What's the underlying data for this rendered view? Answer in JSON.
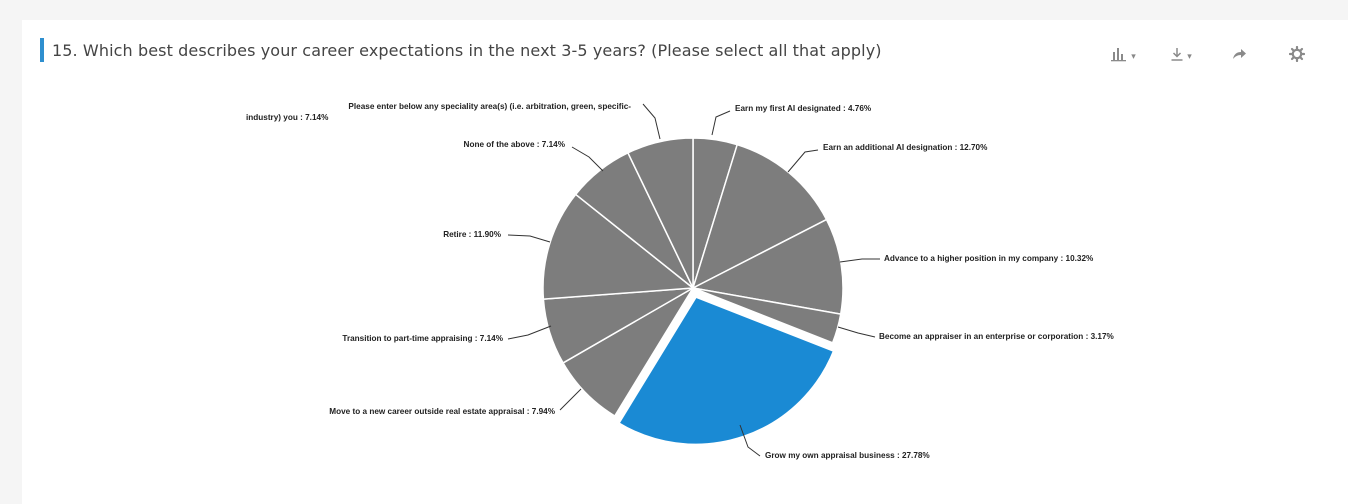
{
  "question": {
    "title": "15. Which best describes your career expectations in the next 3-5 years? (Please select all that apply)"
  },
  "toolbar": {
    "items": [
      {
        "icon": "bar-chart-icon",
        "has_menu": true
      },
      {
        "icon": "download-icon",
        "has_menu": true
      },
      {
        "icon": "share-icon",
        "has_menu": false
      },
      {
        "icon": "gear-icon",
        "has_menu": false
      }
    ]
  },
  "colors": {
    "accent": "#2e8fcf",
    "slice": "#7d7d7d",
    "highlight": "#1a8ad4",
    "slice_border": "#ffffff",
    "leader": "#333333"
  },
  "chart_data": {
    "type": "pie",
    "title": "",
    "highlighted": "Grow my own appraisal business",
    "slices": [
      {
        "name": "Earn my first AI designated",
        "value": 4.76,
        "label": "Earn my first AI designated : 4.76%"
      },
      {
        "name": "Earn an additional AI designation",
        "value": 12.7,
        "label": "Earn an additional AI designation : 12.70%"
      },
      {
        "name": "Advance to a higher position in my company",
        "value": 10.32,
        "label": "Advance to a higher position in my company : 10.32%"
      },
      {
        "name": "Become an appraiser in an enterprise or corporation",
        "value": 3.17,
        "label": "Become an appraiser in an enterprise or corporation : 3.17%"
      },
      {
        "name": "Grow my own appraisal business",
        "value": 27.78,
        "label": "Grow my own appraisal business : 27.78%"
      },
      {
        "name": "Move to a new career outside real estate appraisal",
        "value": 7.94,
        "label": "Move to a new career outside real estate appraisal : 7.94%"
      },
      {
        "name": "Transition to part-time appraising",
        "value": 7.14,
        "label": "Transition to part-time appraising : 7.14%"
      },
      {
        "name": "Retire",
        "value": 11.9,
        "label": "Retire : 11.90%"
      },
      {
        "name": "None of the above",
        "value": 7.14,
        "label": "None of the above : 7.14%"
      },
      {
        "name": "Please enter below any speciality area(s) (i.e. arbitration, green, specific-industry) you",
        "value": 7.14,
        "label": "Please enter below any speciality area(s) (i.e. arbitration, green, specific-industry) you : 7.14%",
        "label_lines": [
          "Please enter below any speciality area(s) (i.e. arbitration, green, specific-",
          "industry) you : 7.14%"
        ]
      }
    ]
  }
}
